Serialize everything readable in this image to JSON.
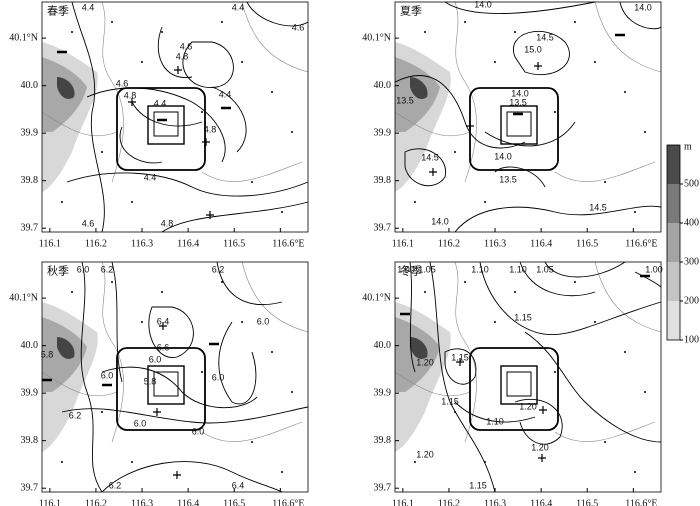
{
  "map": {
    "xlim": [
      116.083,
      116.66
    ],
    "ylim": [
      39.692,
      40.176
    ],
    "xticks": [
      116.1,
      116.2,
      116.3,
      116.4,
      116.5,
      {
        "value": 116.6,
        "label": "116.6°E"
      }
    ],
    "yticks": [
      39.7,
      39.8,
      39.9,
      {
        "value": 40,
        "label": "40.0"
      },
      {
        "value": 40.1,
        "label": "40.1°N"
      }
    ],
    "panels": [
      {
        "label": "春季",
        "contour_labels": [
          "4.4",
          "4.4",
          "4.6",
          "4.6",
          "4.8",
          "4.6",
          "4.8",
          "4.4",
          "4.4",
          "4.8",
          "4.4",
          "4.6",
          "4.8"
        ]
      },
      {
        "label": "夏季",
        "contour_labels": [
          "14.0",
          "14.0",
          "14.5",
          "15.0",
          "13.5",
          "14.0",
          "13.5",
          "14.5",
          "14.0",
          "13.5",
          "14.5",
          "14.0"
        ]
      },
      {
        "label": "秋季",
        "contour_labels": [
          "6.0",
          "6.2",
          "6.2",
          "6.4",
          "6.0",
          "5.8",
          "6.0",
          "6.6",
          "6.0",
          "5.8",
          "6.0",
          "6.2",
          "6.0",
          "6.0",
          "6.2",
          "6.4"
        ]
      },
      {
        "label": "冬季",
        "contour_labels": [
          "1.00",
          "1.05",
          "1.10",
          "1.10",
          "1.05",
          "1.00",
          "1.15",
          "1.20",
          "1.15",
          "1.15",
          "1.10",
          "1.20",
          "1.20",
          "1.20",
          "1.15"
        ]
      }
    ],
    "colorbar": {
      "unit": "m",
      "lim": [
        100,
        600
      ],
      "ticks": [
        100,
        200,
        300,
        400,
        500
      ],
      "colors": [
        "#e0e0e0",
        "#c4c4c4",
        "#a4a4a4",
        "#7a7a7a",
        "#4a4a4a"
      ]
    }
  }
}
